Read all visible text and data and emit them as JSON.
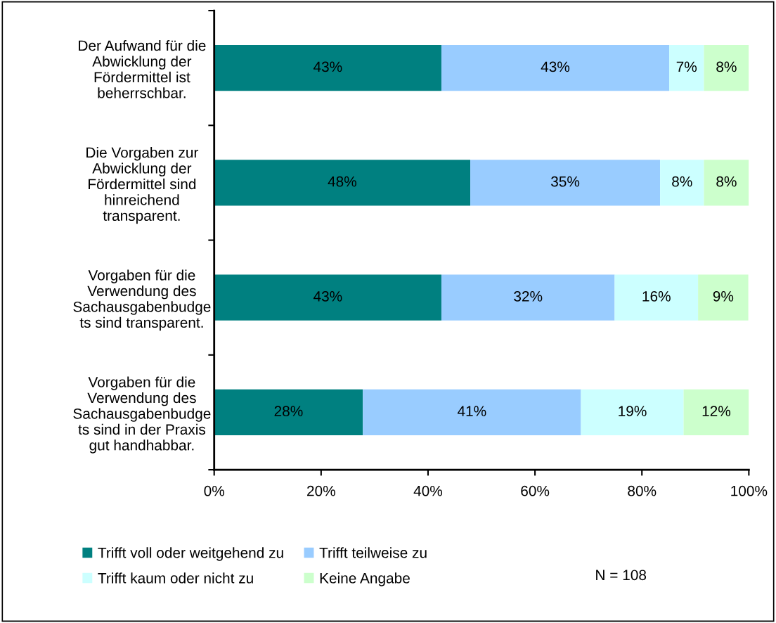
{
  "chart_data": {
    "type": "bar",
    "orientation": "horizontal",
    "stacked": true,
    "categories": [
      "Der Aufwand für die\nAbwicklung der\nFördermittel ist\nbeherrschbar.",
      "Die Vorgaben zur\nAbwicklung der\nFördermittel sind\nhinreichend\ntransparent.",
      "Vorgaben für die\nVerwendung des\nSachausgabenbudge\nts sind transparent.",
      "Vorgaben für die\nVerwendung des\nSachausgabenbudge\nts sind in der Praxis\ngut handhabbar."
    ],
    "series": [
      {
        "name": "Trifft voll oder weitgehend zu",
        "color": "#008080",
        "values": [
          42.5,
          47.9,
          42.5,
          27.8
        ],
        "value_labels": [
          "43%",
          "48%",
          "43%",
          "28%"
        ]
      },
      {
        "name": "Trifft teilweise zu",
        "color": "#99ccff",
        "values": [
          42.6,
          35.5,
          32.4,
          40.8
        ],
        "value_labels": [
          "43%",
          "35%",
          "32%",
          "41%"
        ]
      },
      {
        "name": "Trifft kaum oder nicht zu",
        "color": "#ccffff",
        "values": [
          6.5,
          8.2,
          15.6,
          19.2
        ],
        "value_labels": [
          "7%",
          "8%",
          "16%",
          "19%"
        ]
      },
      {
        "name": "Keine Angabe",
        "color": "#ccffcc",
        "values": [
          8.4,
          8.4,
          9.4,
          12.2
        ],
        "value_labels": [
          "8%",
          "8%",
          "9%",
          "12%"
        ]
      }
    ],
    "xlim": [
      0,
      100
    ],
    "xticks": [
      {
        "value": 0,
        "label": "0%"
      },
      {
        "value": 20,
        "label": "20%"
      },
      {
        "value": 40,
        "label": "40%"
      },
      {
        "value": 60,
        "label": "60%"
      },
      {
        "value": 80,
        "label": "80%"
      },
      {
        "value": 100,
        "label": "100%"
      }
    ],
    "grid": false,
    "legend": "bottom",
    "annotations": [
      "N = 108"
    ]
  }
}
